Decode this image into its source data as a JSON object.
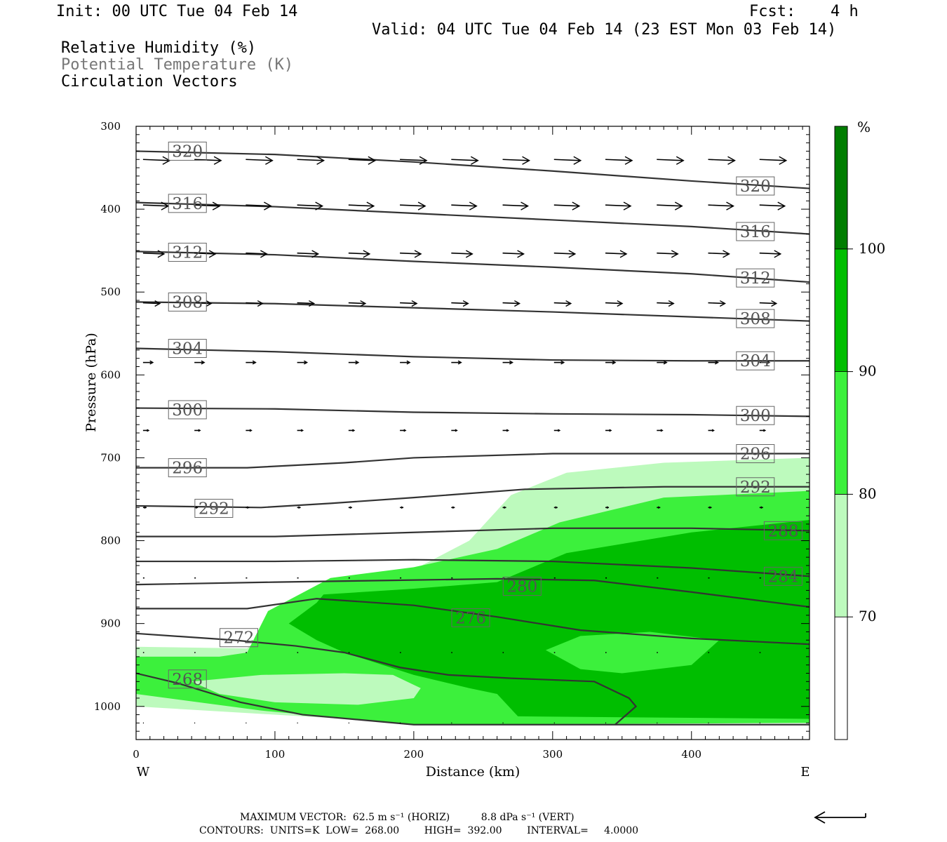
{
  "header": {
    "init": "Init: 00 UTC Tue 04 Feb 14",
    "fcst_label": "Fcst:",
    "fcst_value": "4 h",
    "valid": "Valid: 04 UTC Tue 04 Feb 14 (23 EST Mon 03 Feb 14)"
  },
  "fields": [
    "Relative Humidity (%)",
    "Potential Temperature (K)",
    "Circulation Vectors"
  ],
  "colors": {
    "rh70": "#bdfabd",
    "rh80": "#3cf03c",
    "rh90": "#00be00",
    "rh100": "#007d00",
    "theta_line": "#333333",
    "label_text": "#555555"
  },
  "chart_data": {
    "type": "cross-section",
    "xlabel": "Distance (km)",
    "ylabel": "Pressure (hPa)",
    "xlim": [
      0,
      485
    ],
    "ylim": [
      1040,
      300
    ],
    "x_ticks": [
      0,
      100,
      200,
      300,
      400
    ],
    "y_ticks": [
      300,
      400,
      500,
      600,
      700,
      800,
      900,
      1000
    ],
    "x_end_labels": {
      "left": "W",
      "right": "E"
    },
    "colorbar": {
      "unit": "%",
      "labels": [
        70,
        80,
        90,
        100
      ],
      "bounds": [
        60,
        70,
        80,
        90,
        100,
        110
      ]
    },
    "rh_regions": [
      {
        "level": 70,
        "polygon": [
          [
            0,
            928
          ],
          [
            80,
            930
          ],
          [
            130,
            855
          ],
          [
            185,
            848
          ],
          [
            240,
            800
          ],
          [
            270,
            745
          ],
          [
            310,
            718
          ],
          [
            380,
            706
          ],
          [
            485,
            700
          ],
          [
            485,
            1020
          ],
          [
            200,
            1020
          ],
          [
            0,
            1000
          ]
        ]
      },
      {
        "level": 80,
        "polygon": [
          [
            0,
            940
          ],
          [
            60,
            940
          ],
          [
            80,
            935
          ],
          [
            95,
            885
          ],
          [
            140,
            845
          ],
          [
            200,
            832
          ],
          [
            260,
            810
          ],
          [
            305,
            778
          ],
          [
            380,
            748
          ],
          [
            485,
            740
          ],
          [
            485,
            1020
          ],
          [
            200,
            1022
          ],
          [
            90,
            1005
          ],
          [
            0,
            985
          ]
        ]
      },
      {
        "level": 90,
        "polygon": [
          [
            110,
            900
          ],
          [
            130,
            875
          ],
          [
            135,
            865
          ],
          [
            200,
            858
          ],
          [
            260,
            850
          ],
          [
            310,
            815
          ],
          [
            400,
            790
          ],
          [
            485,
            775
          ],
          [
            485,
            1015
          ],
          [
            275,
            1012
          ],
          [
            260,
            985
          ],
          [
            240,
            978
          ],
          [
            200,
            962
          ],
          [
            150,
            935
          ],
          [
            130,
            920
          ]
        ]
      },
      {
        "level": 80,
        "polygon": [
          [
            295,
            932
          ],
          [
            320,
            915
          ],
          [
            370,
            910
          ],
          [
            420,
            920
          ],
          [
            400,
            950
          ],
          [
            350,
            960
          ],
          [
            320,
            955
          ]
        ]
      },
      {
        "level": 70,
        "polygon": [
          [
            40,
            970
          ],
          [
            90,
            962
          ],
          [
            150,
            960
          ],
          [
            185,
            962
          ],
          [
            205,
            978
          ],
          [
            200,
            990
          ],
          [
            160,
            998
          ],
          [
            100,
            995
          ],
          [
            60,
            985
          ]
        ]
      }
    ],
    "theta_contours": [
      {
        "value": 268,
        "points": [
          [
            0,
            960
          ],
          [
            30,
            972
          ],
          [
            75,
            995
          ],
          [
            120,
            1010
          ],
          [
            200,
            1022
          ],
          [
            485,
            1022
          ]
        ],
        "label": [
          37,
          967
        ]
      },
      {
        "value": 272,
        "points": [
          [
            0,
            912
          ],
          [
            70,
            920
          ],
          [
            115,
            927
          ],
          [
            150,
            935
          ],
          [
            190,
            953
          ],
          [
            225,
            962
          ],
          [
            270,
            966
          ],
          [
            330,
            970
          ],
          [
            355,
            990
          ],
          [
            360,
            1000
          ],
          [
            345,
            1022
          ]
        ],
        "label": [
          74,
          917
        ]
      },
      {
        "value": 276,
        "points": [
          [
            0,
            882
          ],
          [
            80,
            882
          ],
          [
            130,
            870
          ],
          [
            200,
            878
          ],
          [
            260,
            892
          ],
          [
            320,
            908
          ],
          [
            400,
            918
          ],
          [
            485,
            925
          ]
        ],
        "label": [
          241,
          893
        ]
      },
      {
        "value": 280,
        "points": [
          [
            0,
            853
          ],
          [
            100,
            850
          ],
          [
            180,
            848
          ],
          [
            260,
            846
          ],
          [
            330,
            848
          ],
          [
            400,
            862
          ],
          [
            485,
            880
          ]
        ],
        "label": [
          278,
          855
        ]
      },
      {
        "value": 284,
        "points": [
          [
            0,
            825
          ],
          [
            100,
            825
          ],
          [
            200,
            823
          ],
          [
            300,
            825
          ],
          [
            400,
            833
          ],
          [
            485,
            843
          ]
        ],
        "label": [
          466,
          843
        ]
      },
      {
        "value": 288,
        "points": [
          [
            0,
            795
          ],
          [
            100,
            795
          ],
          [
            200,
            790
          ],
          [
            300,
            785
          ],
          [
            400,
            785
          ],
          [
            485,
            788
          ]
        ],
        "label": [
          466,
          788
        ]
      },
      {
        "value": 292,
        "points": [
          [
            0,
            758
          ],
          [
            90,
            760
          ],
          [
            140,
            755
          ],
          [
            200,
            748
          ],
          [
            280,
            738
          ],
          [
            380,
            735
          ],
          [
            485,
            735
          ]
        ],
        "label": [
          56,
          761
        ]
      },
      {
        "value": 296,
        "points": [
          [
            0,
            712
          ],
          [
            80,
            712
          ],
          [
            150,
            706
          ],
          [
            200,
            700
          ],
          [
            300,
            695
          ],
          [
            485,
            695
          ]
        ],
        "label": [
          37,
          712
        ]
      },
      {
        "value": 300,
        "points": [
          [
            0,
            640
          ],
          [
            100,
            641
          ],
          [
            200,
            645
          ],
          [
            300,
            647
          ],
          [
            400,
            648
          ],
          [
            485,
            650
          ]
        ],
        "label": [
          37,
          642
        ]
      },
      {
        "value": 304,
        "points": [
          [
            0,
            568
          ],
          [
            100,
            572
          ],
          [
            200,
            578
          ],
          [
            300,
            582
          ],
          [
            400,
            583
          ],
          [
            485,
            583
          ]
        ],
        "label": [
          37,
          568
        ]
      },
      {
        "value": 308,
        "points": [
          [
            0,
            512
          ],
          [
            100,
            514
          ],
          [
            200,
            519
          ],
          [
            300,
            524
          ],
          [
            400,
            530
          ],
          [
            485,
            535
          ]
        ],
        "label": [
          37,
          512
        ]
      },
      {
        "value": 312,
        "points": [
          [
            0,
            451
          ],
          [
            100,
            455
          ],
          [
            200,
            463
          ],
          [
            300,
            470
          ],
          [
            400,
            478
          ],
          [
            485,
            488
          ]
        ],
        "label": [
          37,
          452
        ]
      },
      {
        "value": 316,
        "points": [
          [
            0,
            392
          ],
          [
            100,
            397
          ],
          [
            200,
            405
          ],
          [
            300,
            413
          ],
          [
            400,
            421
          ],
          [
            485,
            430
          ]
        ],
        "label": [
          37,
          393
        ]
      },
      {
        "value": 320,
        "points": [
          [
            0,
            330
          ],
          [
            100,
            334
          ],
          [
            200,
            343
          ],
          [
            300,
            354
          ],
          [
            400,
            366
          ],
          [
            485,
            375
          ]
        ],
        "label": [
          37,
          330
        ]
      }
    ],
    "theta_right_labels": [
      {
        "value": 320,
        "at": [
          446,
          372
        ]
      },
      {
        "value": 316,
        "at": [
          446,
          427
        ]
      },
      {
        "value": 312,
        "at": [
          446,
          483
        ]
      },
      {
        "value": 308,
        "at": [
          446,
          532
        ]
      },
      {
        "value": 304,
        "at": [
          446,
          583
        ]
      },
      {
        "value": 300,
        "at": [
          446,
          649
        ]
      },
      {
        "value": 296,
        "at": [
          446,
          695
        ]
      },
      {
        "value": 292,
        "at": [
          446,
          735
        ]
      }
    ],
    "theta_label_values": [
      "268",
      "272",
      "276",
      "280",
      "284",
      "288",
      "292",
      "296",
      "300",
      "304",
      "308",
      "312",
      "316",
      "320"
    ],
    "theta_right_label_values": [
      "320",
      "316",
      "312",
      "308",
      "304",
      "300",
      "296",
      "292"
    ],
    "vector_rows": [
      {
        "p": 340,
        "len": 38
      },
      {
        "p": 395,
        "len": 36
      },
      {
        "p": 453,
        "len": 30
      },
      {
        "p": 513,
        "len": 24
      },
      {
        "p": 585,
        "len": 14
      },
      {
        "p": 667,
        "len": 8
      },
      {
        "p": 760,
        "len": 5
      },
      {
        "p": 845,
        "len": 2
      },
      {
        "p": 935,
        "len": 1.5
      },
      {
        "p": 1020,
        "len": 1
      }
    ],
    "vector_x": [
      5,
      42,
      79,
      116,
      153,
      190,
      227,
      264,
      301,
      338,
      375,
      412,
      449
    ]
  },
  "footer": {
    "max_vector": "MAXIMUM VECTOR:  62.5 m s⁻¹ (HORIZ)          8.8 dPa s⁻¹ (VERT)",
    "contours": "CONTOURS:  UNITS=K  LOW=  268.00        HIGH=  392.00        INTERVAL=     4.0000"
  }
}
